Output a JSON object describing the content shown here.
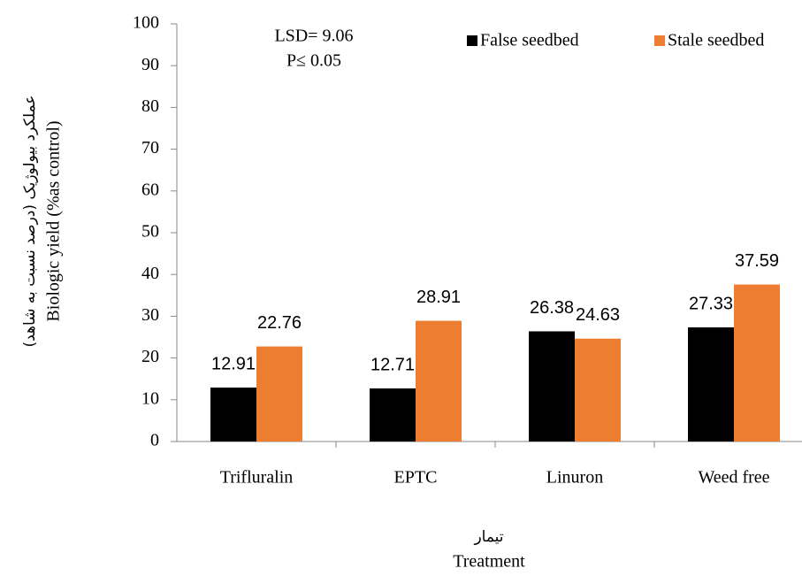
{
  "chart_data": {
    "type": "bar",
    "y_label_fa": "عملکرد بیولوژیک (درصد نسبت به شاهد)",
    "y_label": "Biologic yield (%as control)",
    "x_label_fa": "تیمار",
    "x_label": "Treatment",
    "annotations": [
      "LSD= 9.06",
      "P≤ 0.05"
    ],
    "categories": [
      "Trifluralin",
      "EPTC",
      "Linuron",
      "Weed free"
    ],
    "series": [
      {
        "name": "False seedbed",
        "color": "#000000",
        "values": [
          12.91,
          12.71,
          26.38,
          27.33
        ]
      },
      {
        "name": "Stale seedbed",
        "color": "#ed7d31",
        "values": [
          22.76,
          28.91,
          24.63,
          37.59
        ]
      }
    ],
    "ylim": [
      0,
      100
    ],
    "yticks": [
      0,
      10,
      20,
      30,
      40,
      50,
      60,
      70,
      80,
      90,
      100
    ],
    "legend": "top-right"
  }
}
